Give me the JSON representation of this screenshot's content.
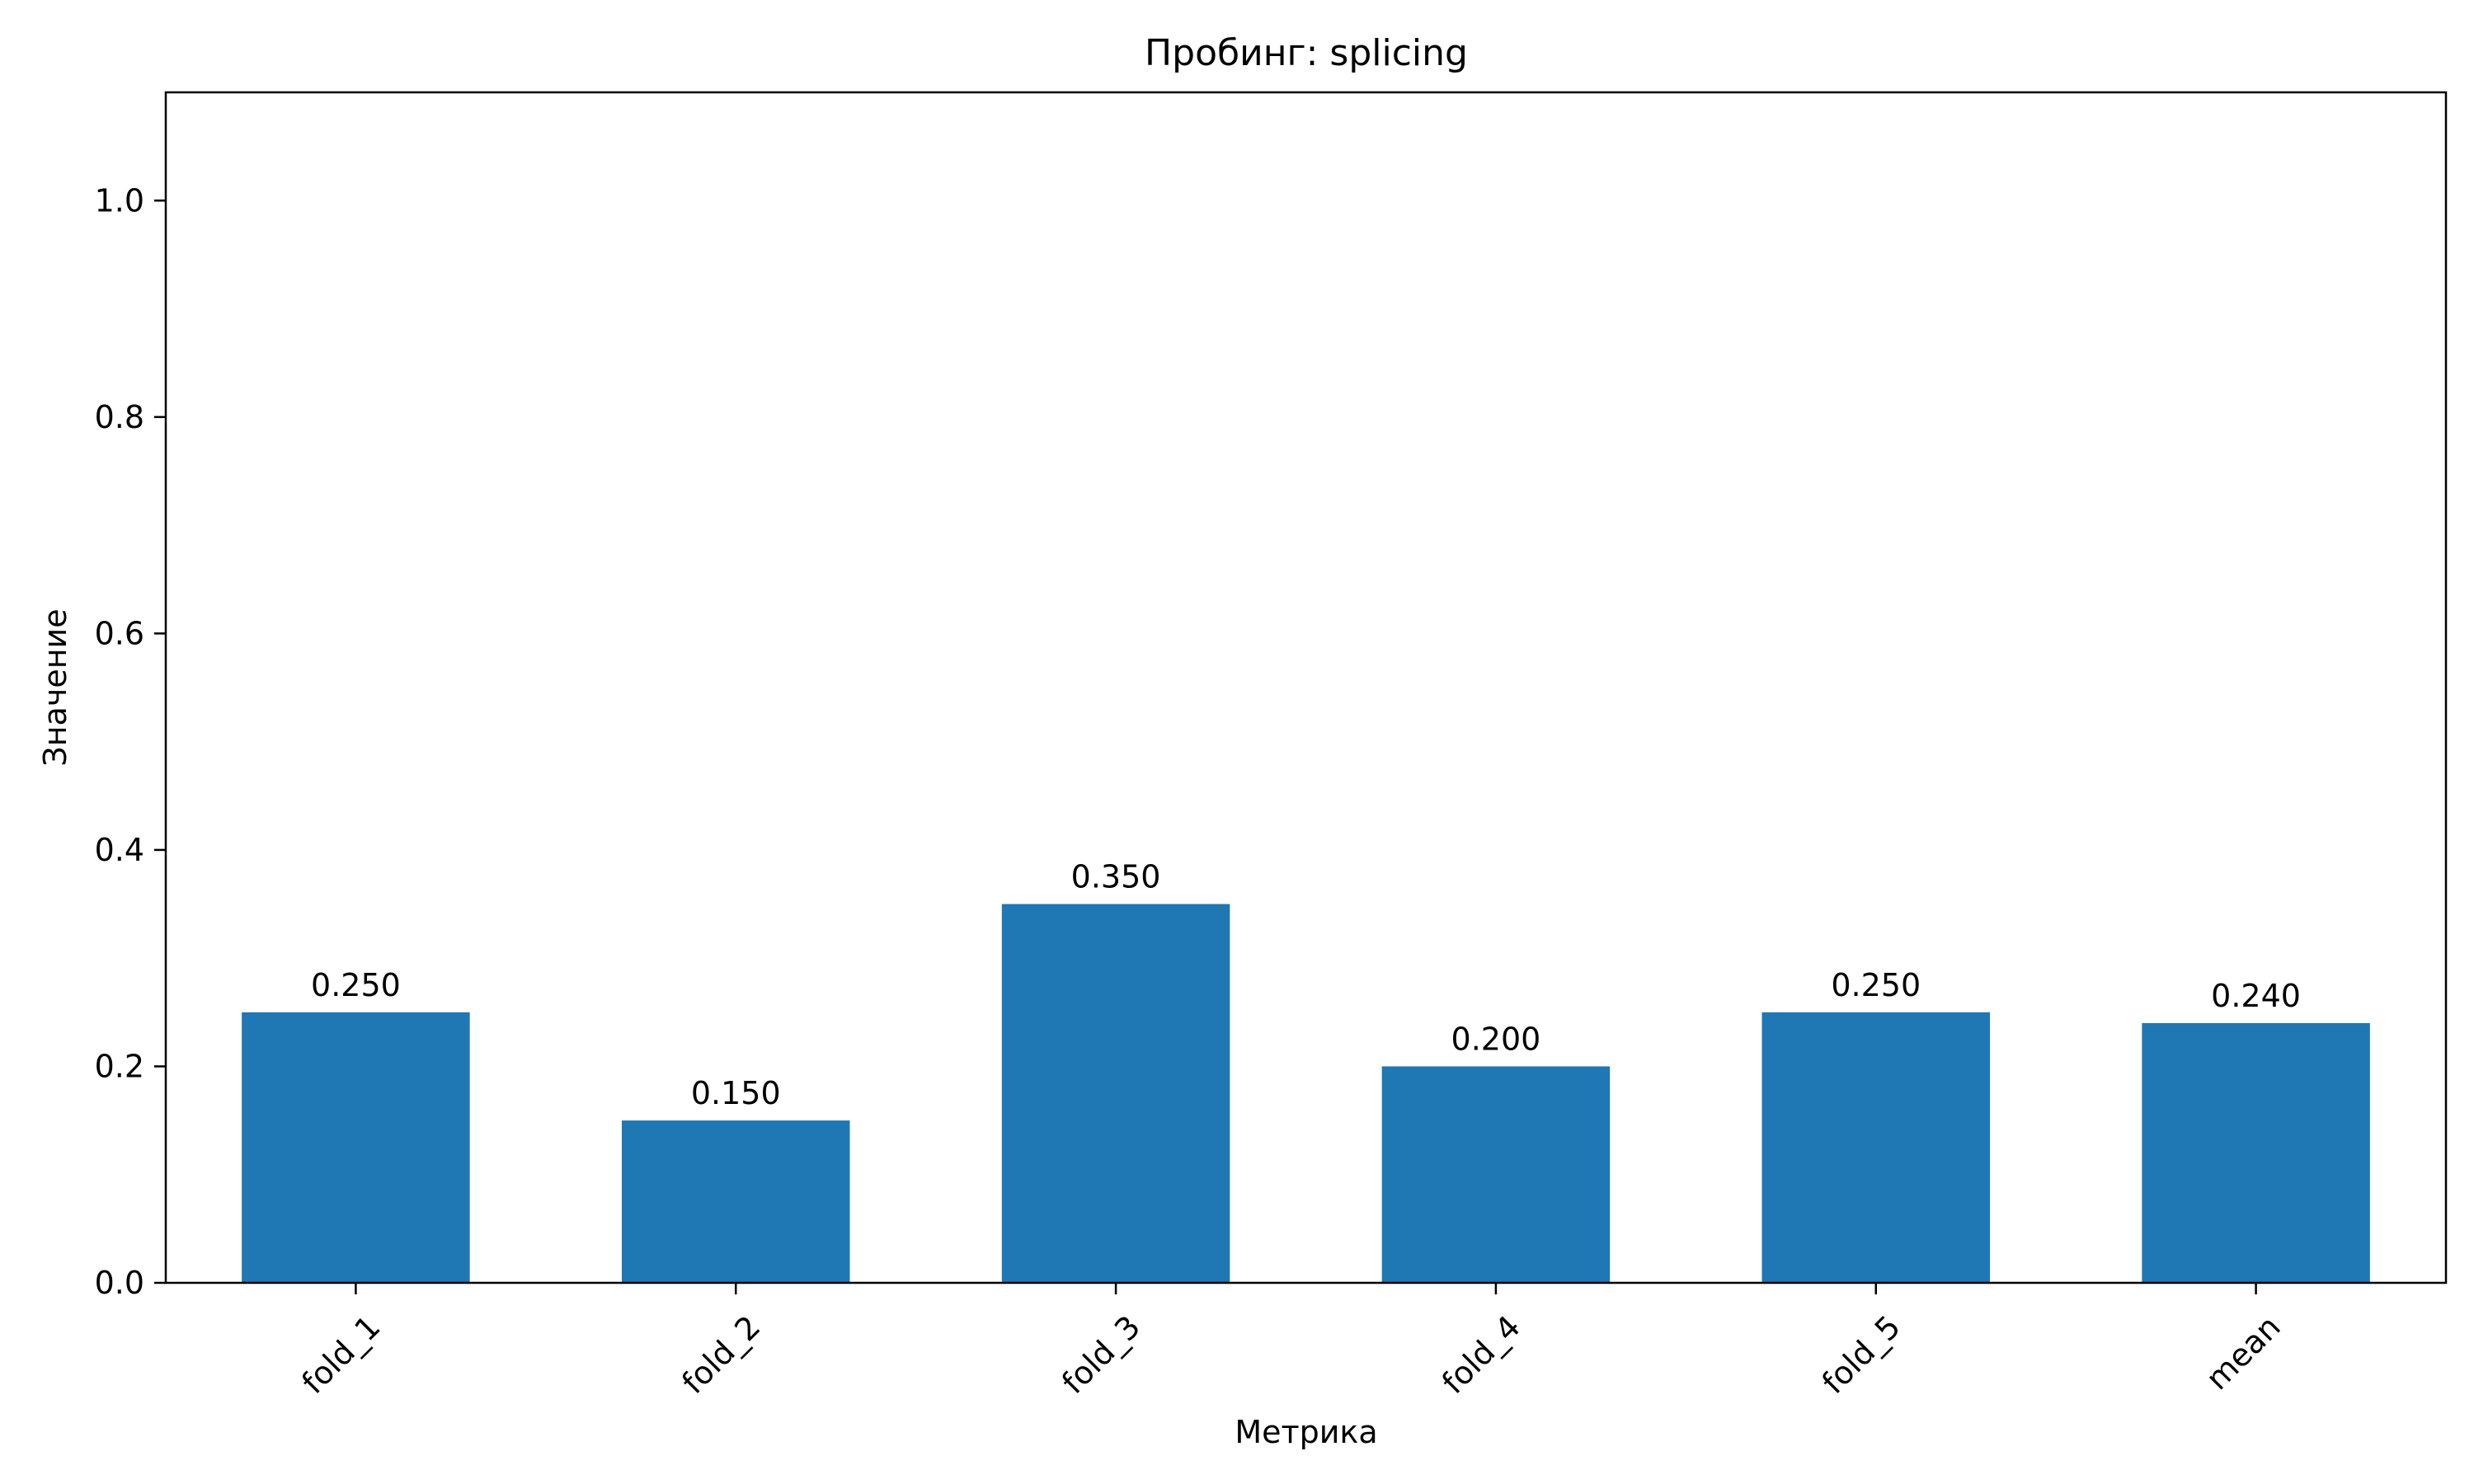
{
  "chart_data": {
    "type": "bar",
    "title": "Пробинг: splicing",
    "xlabel": "Метрика",
    "ylabel": "Значение",
    "categories": [
      "fold_1",
      "fold_2",
      "fold_3",
      "fold_4",
      "fold_5",
      "mean"
    ],
    "values": [
      0.25,
      0.15,
      0.35,
      0.2,
      0.25,
      0.24
    ],
    "value_labels": [
      "0.250",
      "0.150",
      "0.350",
      "0.200",
      "0.250",
      "0.240"
    ],
    "ylim": [
      0,
      1.1
    ],
    "yticks": [
      0.0,
      0.2,
      0.4,
      0.6,
      0.8,
      1.0
    ],
    "ytick_labels": [
      "0.0",
      "0.2",
      "0.4",
      "0.6",
      "0.8",
      "1.0"
    ],
    "grid": false,
    "bar_color": "#1f77b4"
  }
}
